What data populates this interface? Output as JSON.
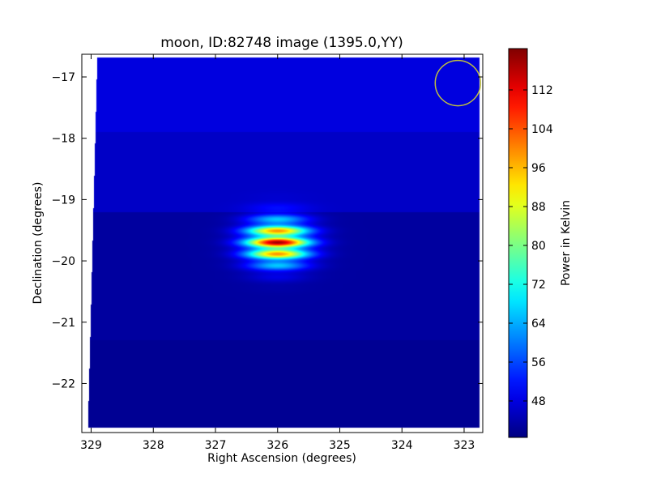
{
  "chart_data": {
    "type": "heatmap",
    "title": "moon, ID:82748 image (1395.0,YY)",
    "xlabel": "Right Ascension (degrees)",
    "ylabel": "Declination (degrees)",
    "xlim": [
      329.15,
      322.7
    ],
    "ylim": [
      -22.8,
      -16.63
    ],
    "x_ticks": [
      329,
      328,
      327,
      326,
      325,
      324,
      323
    ],
    "y_ticks": [
      -17,
      -18,
      -19,
      -20,
      -21,
      -22
    ],
    "grid": false,
    "colormap": "jet",
    "colorbar": {
      "label": "Power in Kelvin",
      "range": [
        40.5,
        120.5
      ],
      "ticks": [
        48,
        56,
        64,
        72,
        80,
        88,
        96,
        104,
        112
      ]
    },
    "image_extent": {
      "ra_min": 322.75,
      "ra_max": 329.05,
      "dec_min": -22.72,
      "dec_max": -16.68
    },
    "background_levels": [
      {
        "dec_from": -16.68,
        "dec_to": -17.9,
        "value": 48
      },
      {
        "dec_from": -17.9,
        "dec_to": -19.2,
        "value": 46
      },
      {
        "dec_from": -19.2,
        "dec_to": -21.3,
        "value": 43
      },
      {
        "dec_from": -21.3,
        "dec_to": -22.72,
        "value": 42
      }
    ],
    "source": {
      "ra": 326.0,
      "dec": -19.7,
      "peak_value": 118,
      "base_value": 43
    },
    "beam_circle": {
      "ra": 323.1,
      "dec": -17.1,
      "radius_deg": 0.37,
      "color": "#bfbf3f"
    }
  }
}
